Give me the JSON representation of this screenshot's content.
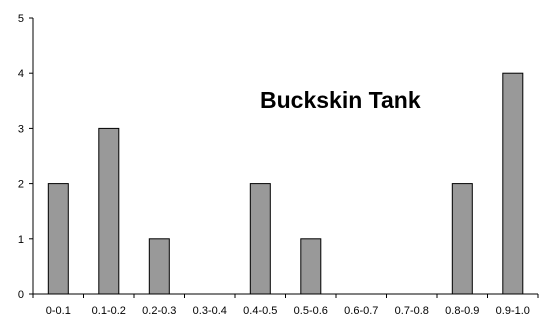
{
  "chart_data": {
    "type": "bar",
    "title": "Buckskin Tank",
    "xlabel": "",
    "ylabel": "",
    "categories": [
      "0-0.1",
      "0.1-0.2",
      "0.2-0.3",
      "0.3-0.4",
      "0.4-0.5",
      "0.5-0.6",
      "0.6-0.7",
      "0.7-0.8",
      "0.8-0.9",
      "0.9-1.0"
    ],
    "values": [
      2,
      3,
      1,
      0,
      2,
      1,
      0,
      0,
      2,
      4
    ],
    "ylim": [
      0,
      5
    ],
    "yticks": [
      "0",
      "1",
      "2",
      "3",
      "4",
      "5"
    ],
    "grid": false,
    "legend": "none",
    "bar_color": "#999999",
    "bar_edge_color": "#000000"
  }
}
